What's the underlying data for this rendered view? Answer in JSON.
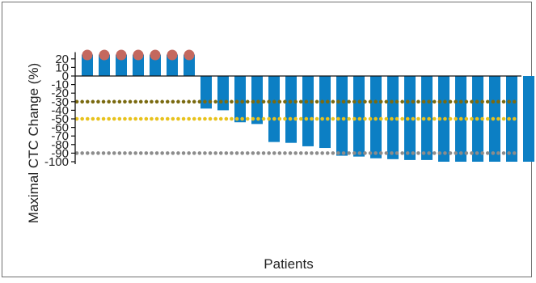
{
  "chart_data": {
    "type": "bar",
    "xlabel": "Patients",
    "ylabel": "Maximal CTC Change (%)",
    "ylim": [
      -100,
      25
    ],
    "yticks": [
      20,
      10,
      0,
      -10,
      -20,
      -30,
      -40,
      -50,
      -60,
      -70,
      -80,
      -90,
      -100
    ],
    "values": [
      25,
      25,
      25,
      25,
      25,
      25,
      25,
      -38,
      -40,
      -54,
      -56,
      -77,
      -78,
      -82,
      -84,
      -93,
      -94,
      -96,
      -97,
      -98,
      -98,
      -100,
      -100,
      -100,
      -100,
      -100,
      -100
    ],
    "capped_bars": [
      0,
      1,
      2,
      3,
      4,
      5,
      6
    ],
    "reference_lines": [
      {
        "y": -30,
        "color": "#7a6a10"
      },
      {
        "y": -50,
        "color": "#e8c21c"
      },
      {
        "y": -90,
        "color": "#8c8c8c"
      }
    ],
    "colors": {
      "bar": "#0c7fc4",
      "cap_marker": "#c4685e",
      "axis": "#111111"
    },
    "grid": false
  }
}
